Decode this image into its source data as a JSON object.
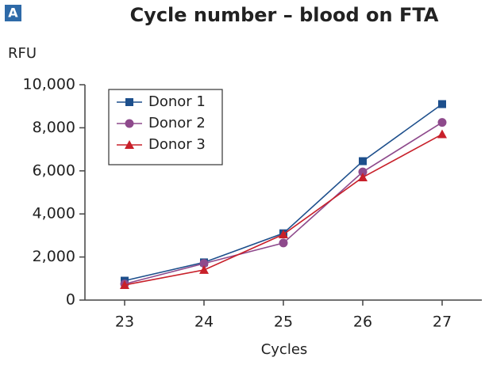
{
  "chart_data": {
    "type": "line",
    "panel_label": "A",
    "title": "Cycle number – blood on FTA",
    "y_label": "RFU",
    "x_label": "Cycles",
    "x": [
      23,
      24,
      25,
      26,
      27
    ],
    "series": [
      {
        "name": "Donor 1",
        "color": "#1d4f8c",
        "marker": "square",
        "values": [
          900,
          1750,
          3100,
          6450,
          9100
        ]
      },
      {
        "name": "Donor 2",
        "color": "#8e4a8c",
        "marker": "circle",
        "values": [
          750,
          1700,
          2650,
          5950,
          8250
        ]
      },
      {
        "name": "Donor 3",
        "color": "#c8202a",
        "marker": "triangle",
        "values": [
          700,
          1400,
          3050,
          5700,
          7700
        ]
      }
    ],
    "xlim": [
      22.5,
      27.5
    ],
    "xticks": [
      23,
      24,
      25,
      26,
      27
    ],
    "ylim": [
      0,
      10000
    ],
    "yticks": [
      0,
      {
        "value": 2000,
        "label": "2,000"
      },
      {
        "value": 4000,
        "label": "4,000"
      },
      {
        "value": 6000,
        "label": "6,000"
      },
      {
        "value": 8000,
        "label": "8,000"
      },
      {
        "value": 10000,
        "label": "10,000"
      }
    ],
    "grid": false,
    "legend": "upper left"
  }
}
